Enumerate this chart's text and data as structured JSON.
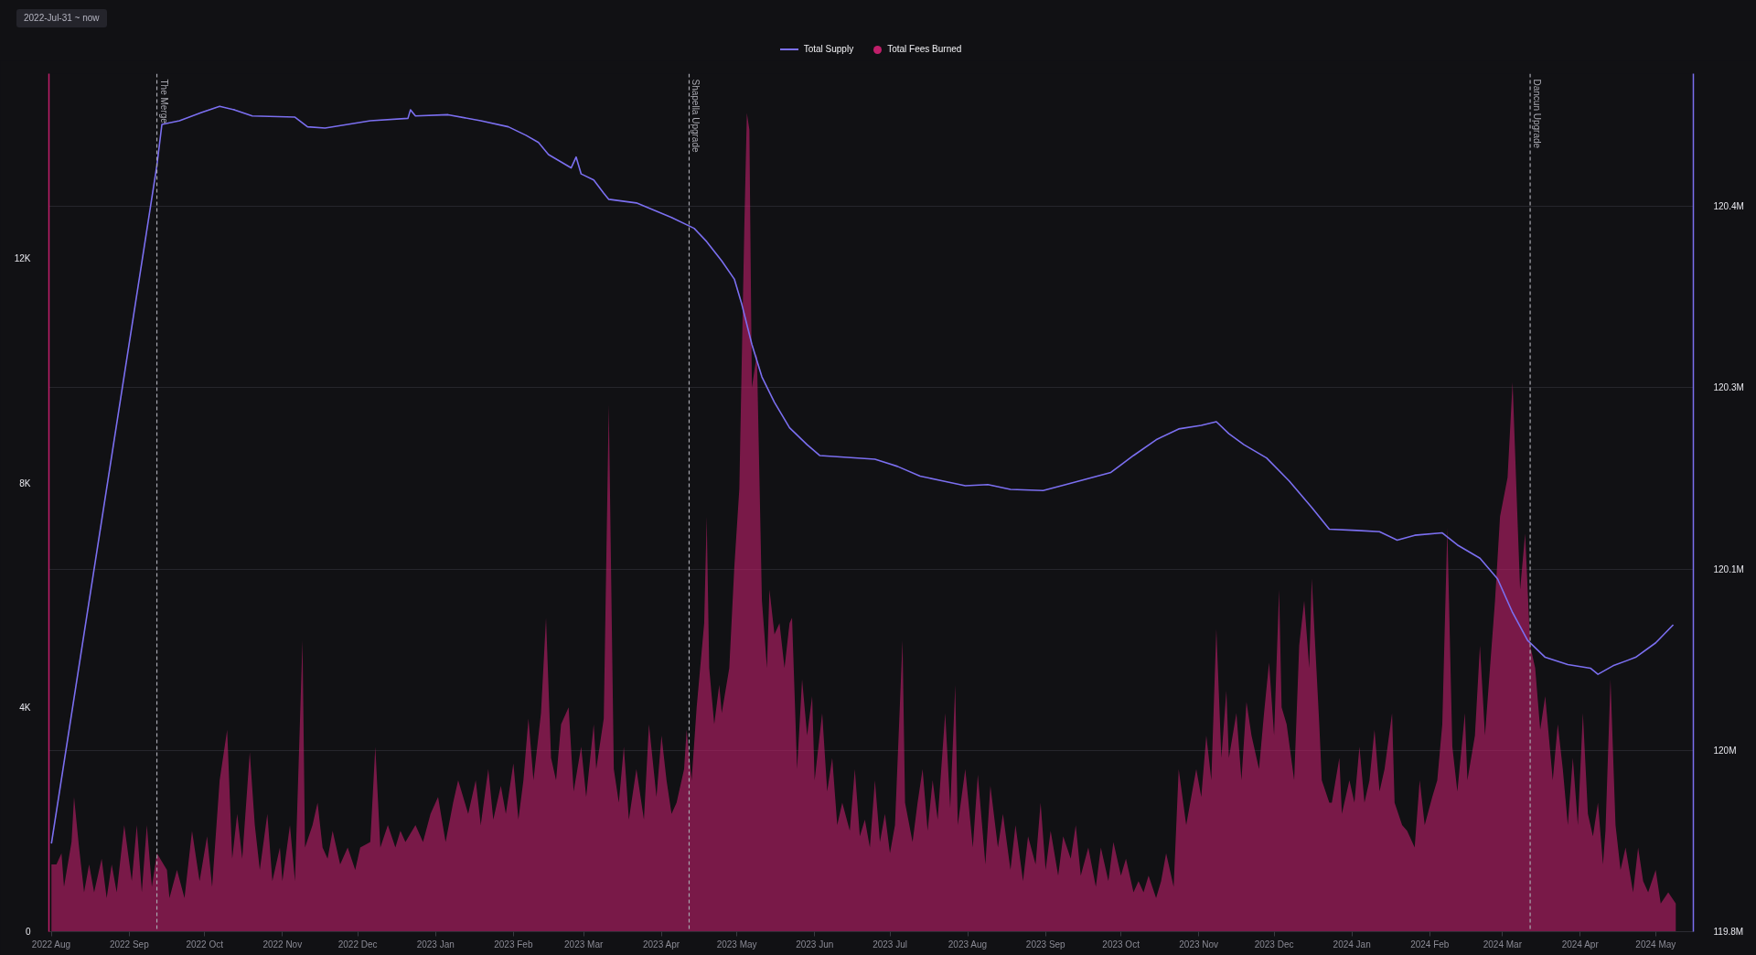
{
  "chart_data": {
    "type": "line",
    "xlim": [
      "2022-07-31",
      "2024-05-16"
    ],
    "xticks": [
      {
        "value": "2022-08",
        "label": "2022 Aug"
      },
      {
        "value": "2022-09",
        "label": "2022 Sep"
      },
      {
        "value": "2022-10",
        "label": "2022 Oct"
      },
      {
        "value": "2022-11",
        "label": "2022 Nov"
      },
      {
        "value": "2022-12",
        "label": "2022 Dec"
      },
      {
        "value": "2023-01",
        "label": "2023 Jan"
      },
      {
        "value": "2023-02",
        "label": "2023 Feb"
      },
      {
        "value": "2023-03",
        "label": "2023 Mar"
      },
      {
        "value": "2023-04",
        "label": "2023 Apr"
      },
      {
        "value": "2023-05",
        "label": "2023 May"
      },
      {
        "value": "2023-06",
        "label": "2023 Jun"
      },
      {
        "value": "2023-07",
        "label": "2023 Jul"
      },
      {
        "value": "2023-08",
        "label": "2023 Aug"
      },
      {
        "value": "2023-09",
        "label": "2023 Sep"
      },
      {
        "value": "2023-10",
        "label": "2023 Oct"
      },
      {
        "value": "2023-11",
        "label": "2023 Nov"
      },
      {
        "value": "2023-12",
        "label": "2023 Dec"
      },
      {
        "value": "2024-01",
        "label": "2024 Jan"
      },
      {
        "value": "2024-02",
        "label": "2024 Feb"
      },
      {
        "value": "2024-03",
        "label": "2024 Mar"
      },
      {
        "value": "2024-04",
        "label": "2024 Apr"
      },
      {
        "value": "2024-05",
        "label": "2024 May"
      }
    ],
    "ylim": [
      0,
      15300
    ],
    "yticks": [
      0,
      {
        "value": 4000,
        "label": "4K"
      },
      {
        "value": 8000,
        "label": "8K"
      },
      {
        "value": 12000,
        "label": "12K"
      }
    ],
    "y2lim": [
      119800000,
      120510000
    ],
    "y2ticks": [
      {
        "value": 119800000,
        "label": "119.8M"
      },
      {
        "value": 119950000,
        "label": "120M"
      },
      {
        "value": 120100000,
        "label": "120.1M"
      },
      {
        "value": 120250000,
        "label": "120.3M"
      },
      {
        "value": 120400000,
        "label": "120.4M"
      }
    ],
    "grid": "y2",
    "legend": "top",
    "annotations": [
      "2022-Jul-31 ~ now"
    ],
    "ref_lines": [
      {
        "axis": "x",
        "value": "2022-09-12",
        "label": "The Merge",
        "color": "#a8a8b0",
        "line_style": "dashed"
      },
      {
        "axis": "x",
        "value": "2023-04-12",
        "label": "Shapella Upgrade",
        "color": "#a8a8b0",
        "line_style": "dashed"
      },
      {
        "axis": "x",
        "value": "2024-03-12",
        "label": "Dancun Upgrade",
        "color": "#a8a8b0",
        "line_style": "dashed"
      }
    ],
    "series": [
      {
        "name": "Total Supply",
        "axis": "y2",
        "color": "#7b6ff0",
        "x": [
          "2022-08-01",
          "2022-09-12",
          "2022-09-14",
          "2022-09-21",
          "2022-09-30",
          "2022-10-07",
          "2022-10-13",
          "2022-10-20",
          "2022-11-06",
          "2022-11-11",
          "2022-11-18",
          "2022-12-06",
          "2022-12-21",
          "2022-12-22",
          "2022-12-24",
          "2023-01-06",
          "2023-01-19",
          "2023-01-30",
          "2023-02-06",
          "2023-02-11",
          "2023-02-15",
          "2023-02-24",
          "2023-02-26",
          "2023-02-28",
          "2023-03-05",
          "2023-03-09",
          "2023-03-11",
          "2023-03-22",
          "2023-03-29",
          "2023-04-05",
          "2023-04-14",
          "2023-04-19",
          "2023-04-25",
          "2023-04-30",
          "2023-05-03",
          "2023-05-07",
          "2023-05-11",
          "2023-05-16",
          "2023-05-22",
          "2023-05-29",
          "2023-06-03",
          "2023-06-25",
          "2023-07-04",
          "2023-07-13",
          "2023-07-22",
          "2023-07-31",
          "2023-08-09",
          "2023-08-18",
          "2023-08-31",
          "2023-09-09",
          "2023-09-27",
          "2023-10-06",
          "2023-10-15",
          "2023-10-24",
          "2023-11-02",
          "2023-11-08",
          "2023-11-13",
          "2023-11-19",
          "2023-11-28",
          "2023-12-07",
          "2023-12-16",
          "2023-12-23",
          "2024-01-03",
          "2024-01-12",
          "2024-01-19",
          "2024-01-26",
          "2024-02-06",
          "2024-02-12",
          "2024-02-21",
          "2024-02-28",
          "2024-03-05",
          "2024-03-11",
          "2024-03-18",
          "2024-03-27",
          "2024-04-05",
          "2024-04-08",
          "2024-04-14",
          "2024-04-23",
          "2024-05-01",
          "2024-05-08"
        ],
        "values": [
          119873000,
          120434000,
          120468000,
          120471000,
          120478000,
          120483000,
          120480000,
          120475000,
          120474000,
          120466000,
          120465000,
          120471000,
          120473000,
          120480000,
          120475000,
          120476000,
          120471000,
          120466000,
          120459000,
          120453000,
          120443000,
          120432000,
          120441000,
          120427000,
          120422000,
          120411000,
          120406000,
          120403000,
          120397000,
          120391000,
          120382000,
          120371000,
          120355000,
          120340000,
          120319000,
          120286000,
          120259000,
          120238000,
          120217000,
          120203000,
          120194000,
          120191000,
          120185000,
          120177000,
          120173000,
          120169000,
          120170000,
          120166000,
          120165000,
          120170000,
          120180000,
          120194000,
          120207000,
          120216000,
          120219000,
          120222000,
          120212000,
          120203000,
          120192000,
          120173000,
          120151000,
          120133000,
          120132000,
          120131000,
          120124000,
          120128000,
          120130000,
          120120000,
          120109000,
          120092000,
          120064000,
          120041000,
          120027000,
          120021000,
          120018000,
          120013000,
          120020000,
          120027000,
          120039000,
          120054000
        ]
      },
      {
        "name": "Total Fees Burned",
        "type": "area",
        "color": "#c01f6a",
        "x": [
          "2022-08-01",
          "2022-08-03",
          "2022-08-05",
          "2022-08-06",
          "2022-08-09",
          "2022-08-10",
          "2022-08-12",
          "2022-08-14",
          "2022-08-16",
          "2022-08-18",
          "2022-08-21",
          "2022-08-23",
          "2022-08-25",
          "2022-08-27",
          "2022-08-30",
          "2022-09-02",
          "2022-09-04",
          "2022-09-06",
          "2022-09-08",
          "2022-09-10",
          "2022-09-12",
          "2022-09-16",
          "2022-09-17",
          "2022-09-20",
          "2022-09-23",
          "2022-09-26",
          "2022-09-29",
          "2022-10-02",
          "2022-10-04",
          "2022-10-07",
          "2022-10-10",
          "2022-10-12",
          "2022-10-14",
          "2022-10-16",
          "2022-10-19",
          "2022-10-21",
          "2022-10-23",
          "2022-10-26",
          "2022-10-28",
          "2022-10-31",
          "2022-11-01",
          "2022-11-04",
          "2022-11-06",
          "2022-11-09",
          "2022-11-10",
          "2022-11-13",
          "2022-11-15",
          "2022-11-17",
          "2022-11-19",
          "2022-11-21",
          "2022-11-24",
          "2022-11-27",
          "2022-11-30",
          "2022-12-02",
          "2022-12-06",
          "2022-12-08",
          "2022-12-10",
          "2022-12-13",
          "2022-12-16",
          "2022-12-18",
          "2022-12-20",
          "2022-12-24",
          "2022-12-27",
          "2022-12-30",
          "2023-01-02",
          "2023-01-05",
          "2023-01-08",
          "2023-01-10",
          "2023-01-14",
          "2023-01-17",
          "2023-01-19",
          "2023-01-22",
          "2023-01-24",
          "2023-01-27",
          "2023-01-29",
          "2023-02-01",
          "2023-02-03",
          "2023-02-05",
          "2023-02-07",
          "2023-02-09",
          "2023-02-12",
          "2023-02-14",
          "2023-02-16",
          "2023-02-18",
          "2023-02-20",
          "2023-02-23",
          "2023-02-25",
          "2023-02-28",
          "2023-03-02",
          "2023-03-05",
          "2023-03-06",
          "2023-03-09",
          "2023-03-11",
          "2023-03-13",
          "2023-03-15",
          "2023-03-17",
          "2023-03-19",
          "2023-03-22",
          "2023-03-25",
          "2023-03-27",
          "2023-03-30",
          "2023-04-01",
          "2023-04-03",
          "2023-04-05",
          "2023-04-07",
          "2023-04-10",
          "2023-04-11",
          "2023-04-13",
          "2023-04-15",
          "2023-04-18",
          "2023-04-19",
          "2023-04-20",
          "2023-04-22",
          "2023-04-24",
          "2023-04-25",
          "2023-04-28",
          "2023-04-30",
          "2023-05-02",
          "2023-05-04",
          "2023-05-05",
          "2023-05-06",
          "2023-05-07",
          "2023-05-09",
          "2023-05-11",
          "2023-05-13",
          "2023-05-14",
          "2023-05-16",
          "2023-05-18",
          "2023-05-20",
          "2023-05-22",
          "2023-05-23",
          "2023-05-25",
          "2023-05-27",
          "2023-05-29",
          "2023-05-31",
          "2023-06-01",
          "2023-06-04",
          "2023-06-06",
          "2023-06-08",
          "2023-06-10",
          "2023-06-12",
          "2023-06-15",
          "2023-06-17",
          "2023-06-19",
          "2023-06-21",
          "2023-06-23",
          "2023-06-25",
          "2023-06-27",
          "2023-06-29",
          "2023-07-01",
          "2023-07-03",
          "2023-07-06",
          "2023-07-07",
          "2023-07-10",
          "2023-07-12",
          "2023-07-14",
          "2023-07-16",
          "2023-07-18",
          "2023-07-20",
          "2023-07-23",
          "2023-07-25",
          "2023-07-27",
          "2023-07-28",
          "2023-07-31",
          "2023-08-03",
          "2023-08-05",
          "2023-08-08",
          "2023-08-10",
          "2023-08-13",
          "2023-08-15",
          "2023-08-18",
          "2023-08-20",
          "2023-08-23",
          "2023-08-25",
          "2023-08-28",
          "2023-08-30",
          "2023-09-01",
          "2023-09-03",
          "2023-09-06",
          "2023-09-08",
          "2023-09-11",
          "2023-09-13",
          "2023-09-15",
          "2023-09-18",
          "2023-09-21",
          "2023-09-23",
          "2023-09-26",
          "2023-09-28",
          "2023-10-01",
          "2023-10-03",
          "2023-10-06",
          "2023-10-08",
          "2023-10-10",
          "2023-10-12",
          "2023-10-15",
          "2023-10-17",
          "2023-10-19",
          "2023-10-22",
          "2023-10-24",
          "2023-10-27",
          "2023-10-29",
          "2023-10-31",
          "2023-11-02",
          "2023-11-04",
          "2023-11-06",
          "2023-11-08",
          "2023-11-10",
          "2023-11-12",
          "2023-11-13",
          "2023-11-16",
          "2023-11-18",
          "2023-11-20",
          "2023-11-22",
          "2023-11-25",
          "2023-11-27",
          "2023-11-29",
          "2023-12-01",
          "2023-12-03",
          "2023-12-04",
          "2023-12-06",
          "2023-12-09",
          "2023-12-11",
          "2023-12-13",
          "2023-12-15",
          "2023-12-16",
          "2023-12-19",
          "2023-12-20",
          "2023-12-23",
          "2023-12-24",
          "2023-12-27",
          "2023-12-28",
          "2023-12-31",
          "2024-01-02",
          "2024-01-04",
          "2024-01-06",
          "2024-01-08",
          "2024-01-10",
          "2024-01-12",
          "2024-01-14",
          "2024-01-17",
          "2024-01-18",
          "2024-01-21",
          "2024-01-23",
          "2024-01-26",
          "2024-01-28",
          "2024-01-30",
          "2024-02-02",
          "2024-02-04",
          "2024-02-06",
          "2024-02-08",
          "2024-02-10",
          "2024-02-12",
          "2024-02-15",
          "2024-02-16",
          "2024-02-19",
          "2024-02-21",
          "2024-02-23",
          "2024-02-25",
          "2024-02-27",
          "2024-02-29",
          "2024-03-03",
          "2024-03-05",
          "2024-03-07",
          "2024-03-08",
          "2024-03-10",
          "2024-03-12",
          "2024-03-14",
          "2024-03-16",
          "2024-03-18",
          "2024-03-21",
          "2024-03-23",
          "2024-03-25",
          "2024-03-27",
          "2024-03-29",
          "2024-03-31",
          "2024-04-02",
          "2024-04-04",
          "2024-04-06",
          "2024-04-08",
          "2024-04-10",
          "2024-04-11",
          "2024-04-13",
          "2024-04-15",
          "2024-04-17",
          "2024-04-19",
          "2024-04-22",
          "2024-04-24",
          "2024-04-26",
          "2024-04-28",
          "2024-05-01",
          "2024-05-03",
          "2024-05-06",
          "2024-05-09"
        ],
        "values": [
          1200,
          1200,
          1400,
          800,
          1600,
          2400,
          1500,
          700,
          1200,
          700,
          1300,
          600,
          1200,
          700,
          1900,
          900,
          1900,
          700,
          1900,
          800,
          1400,
          1100,
          600,
          1100,
          600,
          1800,
          900,
          1700,
          800,
          2700,
          3600,
          1300,
          2100,
          1300,
          3200,
          1900,
          1100,
          2100,
          900,
          1500,
          900,
          1900,
          900,
          5200,
          1500,
          1900,
          2300,
          1500,
          1300,
          1800,
          1200,
          1500,
          1100,
          1500,
          1600,
          3300,
          1500,
          1900,
          1500,
          1800,
          1600,
          1900,
          1600,
          2100,
          2400,
          1600,
          2300,
          2700,
          2100,
          2700,
          1900,
          2900,
          2000,
          2600,
          2100,
          3000,
          2000,
          2700,
          3800,
          2700,
          3900,
          5600,
          3100,
          2700,
          3700,
          4000,
          2500,
          3300,
          2400,
          3700,
          2900,
          3800,
          9400,
          2900,
          2300,
          3300,
          2000,
          2900,
          2000,
          3700,
          2400,
          3500,
          2700,
          2100,
          2300,
          2900,
          3600,
          2700,
          4000,
          5500,
          7400,
          4700,
          3700,
          4400,
          3900,
          4700,
          6500,
          7900,
          12600,
          14600,
          14300,
          9700,
          10300,
          5900,
          4700,
          6100,
          5300,
          5500,
          4700,
          5500,
          5600,
          2900,
          4500,
          3500,
          4200,
          2700,
          3900,
          2500,
          3100,
          1900,
          2300,
          1800,
          2900,
          1700,
          2000,
          1500,
          2700,
          1600,
          2100,
          1400,
          1900,
          5200,
          2300,
          1600,
          2300,
          2900,
          1800,
          2700,
          2000,
          3900,
          2200,
          4400,
          1900,
          2900,
          1500,
          2800,
          1200,
          2600,
          1500,
          2100,
          1100,
          1900,
          900,
          1700,
          1200,
          2300,
          1100,
          1800,
          1000,
          1700,
          1300,
          1900,
          1000,
          1500,
          800,
          1500,
          900,
          1600,
          1000,
          1300,
          700,
          900,
          700,
          1000,
          600,
          900,
          1400,
          800,
          2900,
          1900,
          2400,
          2900,
          2400,
          3500,
          2700,
          5400,
          3100,
          4300,
          3100,
          3900,
          2700,
          4100,
          3500,
          2900,
          3900,
          4800,
          3500,
          6100,
          4000,
          3700,
          2700,
          5100,
          5900,
          4700,
          6300,
          3700,
          2700,
          2300,
          2300,
          3100,
          2100,
          2700,
          2300,
          3300,
          2300,
          2700,
          3600,
          2500,
          2900,
          3900,
          2300,
          1900,
          1800,
          1500,
          2700,
          1900,
          2400,
          2700,
          3700,
          7200,
          3300,
          2500,
          3900,
          2700,
          3500,
          5100,
          3500,
          4700,
          5900,
          7400,
          8100,
          9800,
          7300,
          6100,
          7100,
          5100,
          4700,
          3600,
          4200,
          2700,
          3700,
          2900,
          1900,
          3100,
          1900,
          3900,
          2100,
          1700,
          2300,
          1200,
          1800,
          4500,
          1900,
          1100,
          1500,
          700,
          1500,
          900,
          700,
          1100,
          500,
          700,
          500
        ]
      }
    ]
  }
}
